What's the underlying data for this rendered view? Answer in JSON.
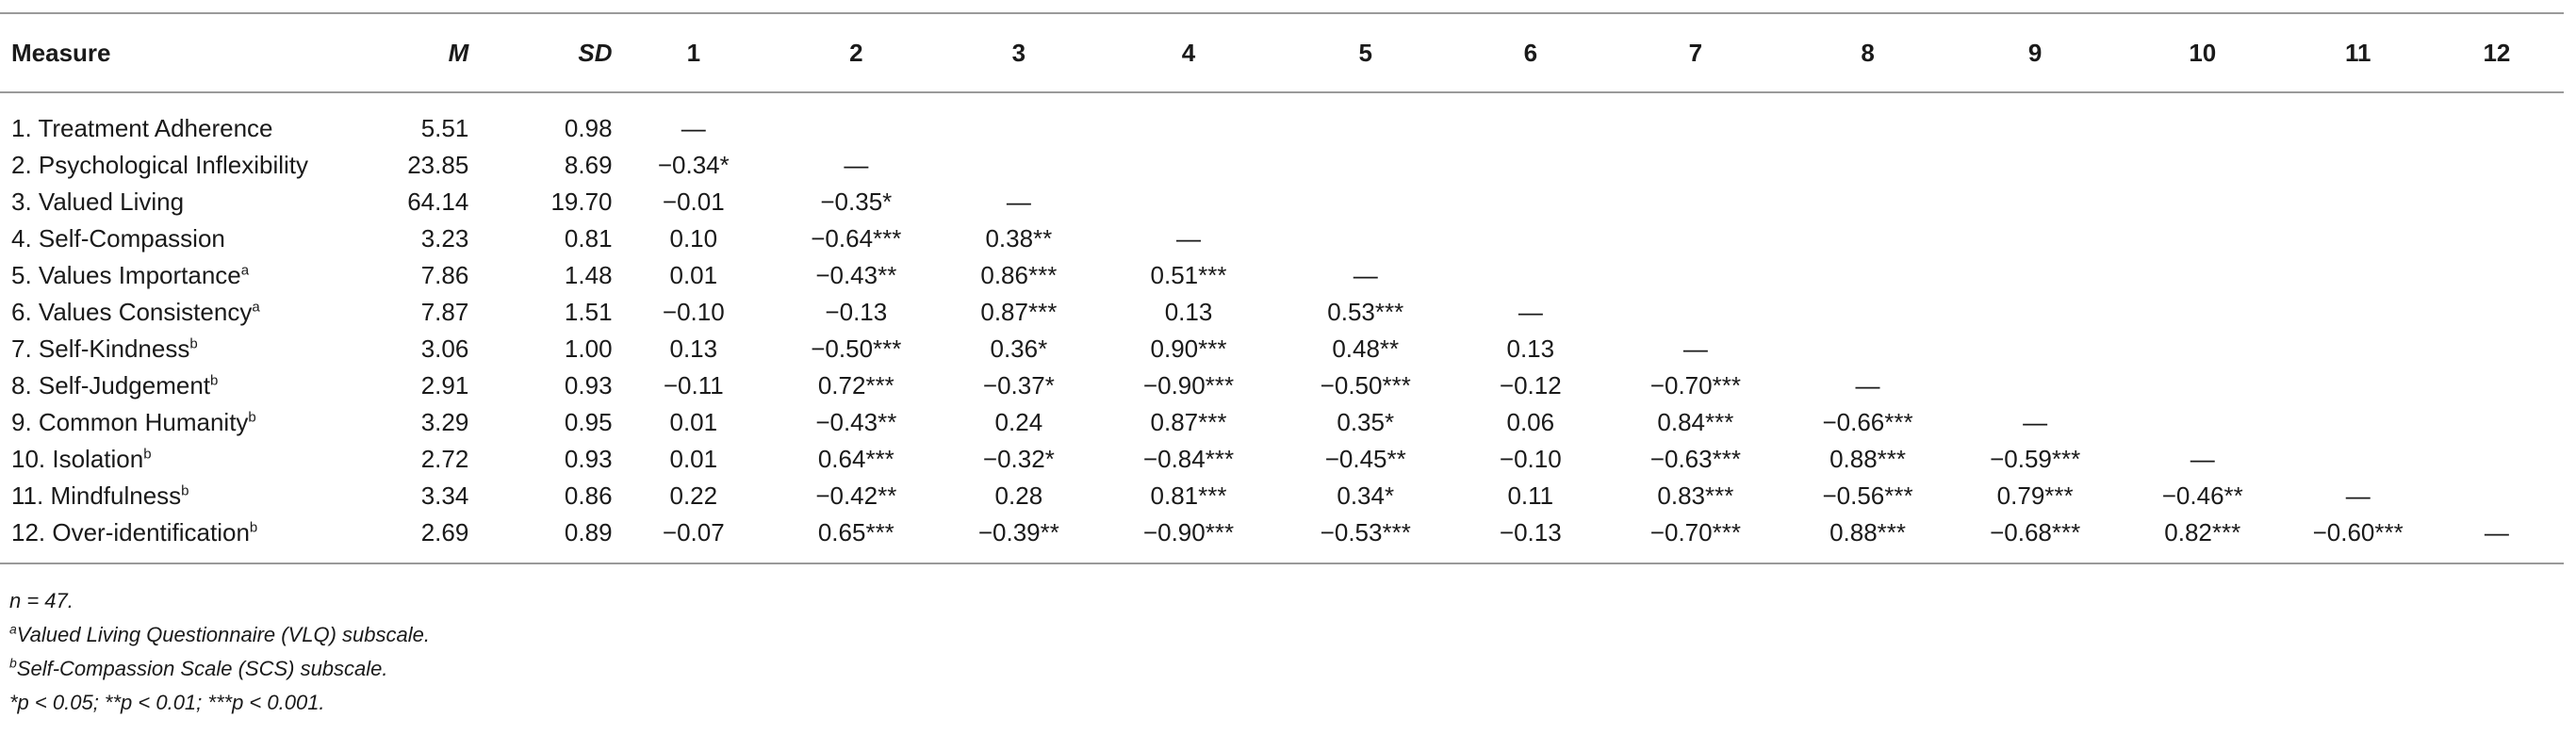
{
  "table": {
    "headers": [
      "Measure",
      "M",
      "SD",
      "1",
      "2",
      "3",
      "4",
      "5",
      "6",
      "7",
      "8",
      "9",
      "10",
      "11",
      "12"
    ],
    "rows": [
      {
        "measure": "1. Treatment Adherence",
        "sup": "",
        "m": "5.51",
        "sd": "0.98",
        "corr": [
          "—",
          "",
          "",
          "",
          "",
          "",
          "",
          "",
          "",
          "",
          "",
          ""
        ]
      },
      {
        "measure": "2. Psychological Inflexibility",
        "sup": "",
        "m": "23.85",
        "sd": "8.69",
        "corr": [
          "−0.34*",
          "—",
          "",
          "",
          "",
          "",
          "",
          "",
          "",
          "",
          "",
          ""
        ]
      },
      {
        "measure": "3. Valued Living",
        "sup": "",
        "m": "64.14",
        "sd": "19.70",
        "corr": [
          "−0.01",
          "−0.35*",
          "—",
          "",
          "",
          "",
          "",
          "",
          "",
          "",
          "",
          ""
        ]
      },
      {
        "measure": "4. Self-Compassion",
        "sup": "",
        "m": "3.23",
        "sd": "0.81",
        "corr": [
          "0.10",
          "−0.64***",
          "0.38**",
          "—",
          "",
          "",
          "",
          "",
          "",
          "",
          "",
          ""
        ]
      },
      {
        "measure": "5. Values Importance",
        "sup": "a",
        "m": "7.86",
        "sd": "1.48",
        "corr": [
          "0.01",
          "−0.43**",
          "0.86***",
          "0.51***",
          "—",
          "",
          "",
          "",
          "",
          "",
          "",
          ""
        ]
      },
      {
        "measure": "6. Values Consistency",
        "sup": "a",
        "m": "7.87",
        "sd": "1.51",
        "corr": [
          "−0.10",
          "−0.13",
          "0.87***",
          "0.13",
          "0.53***",
          "—",
          "",
          "",
          "",
          "",
          "",
          ""
        ]
      },
      {
        "measure": "7. Self-Kindness",
        "sup": "b",
        "m": "3.06",
        "sd": "1.00",
        "corr": [
          "0.13",
          "−0.50***",
          "0.36*",
          "0.90***",
          "0.48**",
          "0.13",
          "—",
          "",
          "",
          "",
          "",
          ""
        ]
      },
      {
        "measure": "8. Self-Judgement",
        "sup": "b",
        "m": "2.91",
        "sd": "0.93",
        "corr": [
          "−0.11",
          "0.72***",
          "−0.37*",
          "−0.90***",
          "−0.50***",
          "−0.12",
          "−0.70***",
          "—",
          "",
          "",
          "",
          ""
        ]
      },
      {
        "measure": "9. Common Humanity",
        "sup": "b",
        "m": "3.29",
        "sd": "0.95",
        "corr": [
          "0.01",
          "−0.43**",
          "0.24",
          "0.87***",
          "0.35*",
          "0.06",
          "0.84***",
          "−0.66***",
          "—",
          "",
          "",
          ""
        ]
      },
      {
        "measure": "10. Isolation",
        "sup": "b",
        "m": "2.72",
        "sd": "0.93",
        "corr": [
          "0.01",
          "0.64***",
          "−0.32*",
          "−0.84***",
          "−0.45**",
          "−0.10",
          "−0.63***",
          "0.88***",
          "−0.59***",
          "—",
          "",
          ""
        ]
      },
      {
        "measure": "11. Mindfulness",
        "sup": "b",
        "m": "3.34",
        "sd": "0.86",
        "corr": [
          "0.22",
          "−0.42**",
          "0.28",
          "0.81***",
          "0.34*",
          "0.11",
          "0.83***",
          "−0.56***",
          "0.79***",
          "−0.46**",
          "—",
          ""
        ]
      },
      {
        "measure": "12. Over-identification",
        "sup": "b",
        "m": "2.69",
        "sd": "0.89",
        "corr": [
          "−0.07",
          "0.65***",
          "−0.39**",
          "−0.90***",
          "−0.53***",
          "−0.13",
          "−0.70***",
          "0.88***",
          "−0.68***",
          "0.82***",
          "−0.60***",
          "—"
        ]
      }
    ]
  },
  "notes": {
    "n": "n = 47.",
    "a_sup": "a",
    "a_text": "Valued Living Questionnaire (VLQ) subscale.",
    "b_sup": "b",
    "b_text": "Self-Compassion Scale (SCS) subscale.",
    "p": "*p < 0.05; **p < 0.01; ***p < 0.001."
  }
}
